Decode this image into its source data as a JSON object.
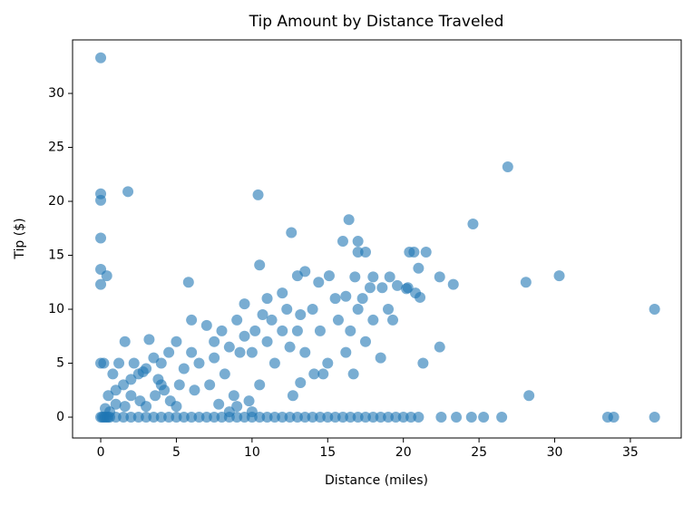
{
  "chart_data": {
    "type": "scatter",
    "title": "Tip Amount by Distance Traveled",
    "x_label": "Distance (miles)",
    "y_label": "Tip ($)",
    "color": "#1f77b4",
    "xlim": [
      -1.86,
      38.36
    ],
    "ylim": [
      -1.93,
      34.96
    ],
    "xticks": [
      0,
      5,
      10,
      15,
      20,
      25,
      30,
      35
    ],
    "yticks": [
      0,
      5,
      10,
      15,
      20,
      25,
      30
    ],
    "x": [
      0,
      0,
      0,
      0,
      0,
      0,
      0.4,
      1.8,
      10.4,
      26.9,
      24.6,
      16.4,
      12.6,
      28.1,
      30.3,
      36.6,
      28.3,
      33.5,
      33.9,
      36.6,
      22.4,
      21.3,
      21.1,
      23.3,
      22.4,
      21.5,
      20.4,
      20.7,
      21,
      17,
      17,
      17.5,
      16,
      13,
      13.5,
      14.4,
      15.1,
      10.5,
      5.8,
      1.6,
      3.2,
      14.7,
      14.1,
      16.7,
      13.2,
      12.7,
      10.5,
      16.2,
      18.6,
      19.1,
      19.6,
      20.2,
      19,
      18,
      17,
      16.2,
      15.7,
      14.5,
      13.2,
      12,
      11,
      10.7,
      12,
      11,
      9.5,
      9,
      8,
      7.5,
      7,
      6,
      6,
      5,
      4.5,
      4,
      3.5,
      3,
      2.5,
      2,
      1.5,
      1,
      0.5,
      0,
      0.2,
      0.8,
      1.2,
      2.2,
      2.8,
      3.8,
      4.2,
      5.5,
      6.5,
      7.5,
      8.5,
      9.5,
      10,
      11.5,
      12.5,
      13.5,
      15,
      16.5,
      17.5,
      18.5,
      19.3,
      20.3,
      20.8,
      18,
      17.8,
      17.3,
      16.8,
      15.5,
      14,
      13,
      12.3,
      11.3,
      10.2,
      9.2,
      8.2,
      7.2,
      6.2,
      5.2,
      4.6,
      3.6,
      2.6,
      1.6,
      0.6,
      7.8,
      8.8,
      9.8,
      5,
      4,
      2,
      3,
      1,
      0.3,
      8.5,
      9,
      10,
      1,
      2,
      3,
      4,
      5,
      6,
      7,
      8,
      9,
      10,
      11,
      12,
      13,
      14,
      15,
      16,
      17,
      18,
      19,
      20,
      21,
      22.5,
      23.5,
      24.5,
      25.3,
      26.5,
      0.5,
      1.5,
      2.5,
      3.5,
      4.5,
      5.5,
      6.5,
      7.5,
      8.5,
      9.5,
      10.5,
      11.5,
      12.5,
      13.5,
      14.5,
      15.5,
      16.5,
      17.5,
      18.5,
      19.5,
      20.5,
      0,
      0.2,
      0.1,
      0.3,
      0.4,
      0.6
    ],
    "values": [
      33.3,
      20.7,
      20.1,
      16.6,
      13.7,
      12.3,
      13.1,
      20.9,
      20.6,
      23.2,
      17.9,
      18.3,
      17.1,
      12.5,
      13.1,
      10,
      2,
      0,
      0,
      0,
      6.5,
      5,
      11.1,
      12.3,
      13,
      15.3,
      15.3,
      15.3,
      13.8,
      16.3,
      15.3,
      15.3,
      16.3,
      13.1,
      13.5,
      12.5,
      13.1,
      14.1,
      12.5,
      7,
      7.2,
      4,
      4,
      4,
      3.2,
      2,
      3,
      6,
      12,
      13,
      12.2,
      11.9,
      10,
      9,
      10,
      11.2,
      9,
      8,
      9.5,
      8,
      7,
      9.5,
      11.5,
      11,
      10.5,
      9,
      8,
      7,
      8.5,
      9,
      6,
      7,
      6,
      5,
      5.5,
      4.5,
      4,
      3.5,
      3,
      2.5,
      2,
      5,
      5,
      4,
      5,
      5,
      4.2,
      3.5,
      2.5,
      4.5,
      5,
      5.5,
      6.5,
      7.5,
      6,
      5,
      6.5,
      6,
      5,
      8,
      7,
      5.5,
      9,
      12,
      11.5,
      13,
      12,
      11,
      13,
      11,
      10,
      8,
      10,
      9,
      8,
      6,
      4,
      3,
      2.5,
      3,
      1.5,
      2,
      1.5,
      1,
      0.5,
      1.2,
      2,
      1.5,
      1,
      3,
      2,
      1,
      1.2,
      0.8,
      0.5,
      1,
      0.5,
      0,
      0,
      0,
      0,
      0,
      0,
      0,
      0,
      0,
      0,
      0,
      0,
      0,
      0,
      0,
      0,
      0,
      0,
      0,
      0,
      0,
      0,
      0,
      0,
      0,
      0,
      0,
      0,
      0,
      0,
      0,
      0,
      0,
      0,
      0,
      0,
      0,
      0,
      0,
      0,
      0,
      0,
      0,
      0,
      0,
      0,
      0,
      0,
      0,
      0,
      0,
      0,
      0
    ]
  }
}
